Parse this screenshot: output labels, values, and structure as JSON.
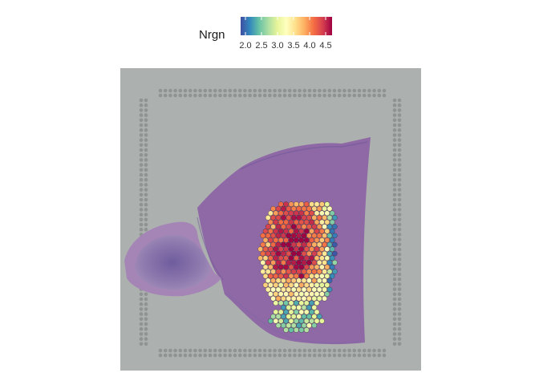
{
  "legend": {
    "title": "Nrgn",
    "ticks": [
      {
        "value": 2.0,
        "label": "2.0"
      },
      {
        "value": 2.5,
        "label": "2.5"
      },
      {
        "value": 3.0,
        "label": "3.0"
      },
      {
        "value": 3.5,
        "label": "3.5"
      },
      {
        "value": 4.0,
        "label": "4.0"
      },
      {
        "value": 4.5,
        "label": "4.5"
      }
    ],
    "range": [
      1.85,
      4.7
    ],
    "palette": [
      "#3f4fa3",
      "#3288bd",
      "#66c2a5",
      "#abdda4",
      "#e6f598",
      "#ffffbf",
      "#fee08b",
      "#fdae61",
      "#f46d43",
      "#d53e4f",
      "#9e0142"
    ]
  },
  "colors": {
    "background": "#ffffff",
    "slide": "#acb0af",
    "fiducial_dot": "#8f9493",
    "tissue": "#8f68a6",
    "tissue_light": "#a585b5",
    "tissue_dark": "#5d4f93"
  }
}
